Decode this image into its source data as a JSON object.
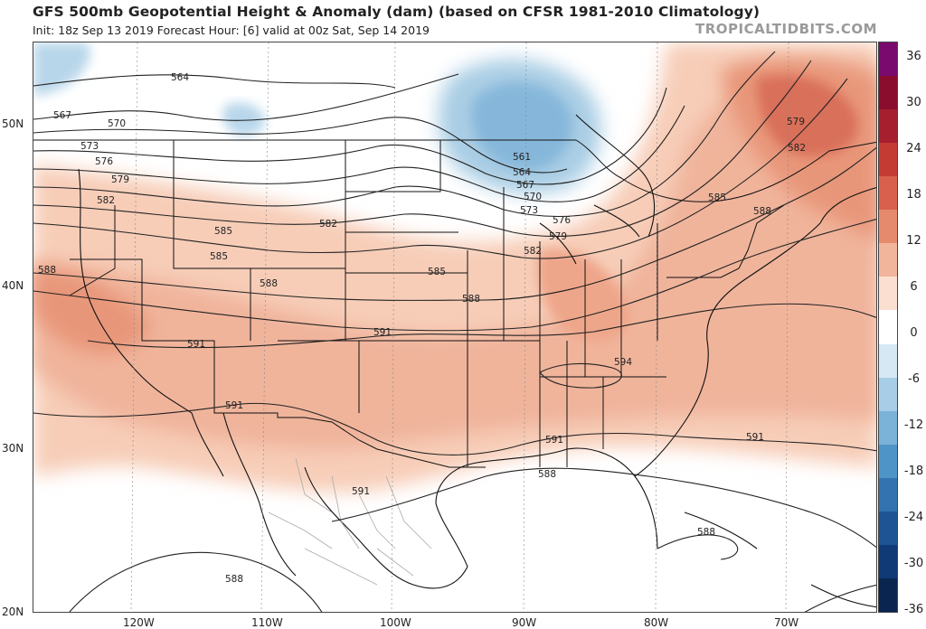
{
  "title": "GFS 500mb Geopotential Height & Anomaly (dam) (based on CFSR 1981-2010 Climatology)",
  "subtitle": "Init: 18z Sep 13 2019   Forecast Hour: [6]   valid at 00z Sat, Sep 14 2019",
  "watermark": "TROPICALTIDBITS.COM",
  "colorbar": {
    "labels": [
      "36",
      "30",
      "24",
      "18",
      "12",
      "6",
      "0",
      "-6",
      "-12",
      "-18",
      "-24",
      "-30",
      "-36"
    ],
    "colors": [
      "#7a0a6e",
      "#8b0d2e",
      "#a51f2e",
      "#c43b34",
      "#d8604c",
      "#e68a6e",
      "#f1b59c",
      "#fbe0d2",
      "#ffffff",
      "#d6e8f4",
      "#a8cde6",
      "#7ab2d8",
      "#4f94c6",
      "#3373b0",
      "#1e5494",
      "#0f3a76",
      "#0a2550"
    ]
  },
  "axes": {
    "lat_labels": [
      "50N",
      "40N",
      "30N",
      "20N"
    ],
    "lon_labels": [
      "120W",
      "110W",
      "100W",
      "90W",
      "80W",
      "70W"
    ]
  },
  "contour_labels": [
    "564",
    "567",
    "570",
    "573",
    "576",
    "579",
    "582",
    "585",
    "588",
    "591",
    "594",
    "561",
    "564",
    "567",
    "570",
    "573",
    "576",
    "579",
    "582",
    "585",
    "588",
    "591",
    "588",
    "591",
    "588",
    "591",
    "588",
    "585",
    "582",
    "579",
    "582",
    "585",
    "588",
    "588",
    "591",
    "591"
  ]
}
